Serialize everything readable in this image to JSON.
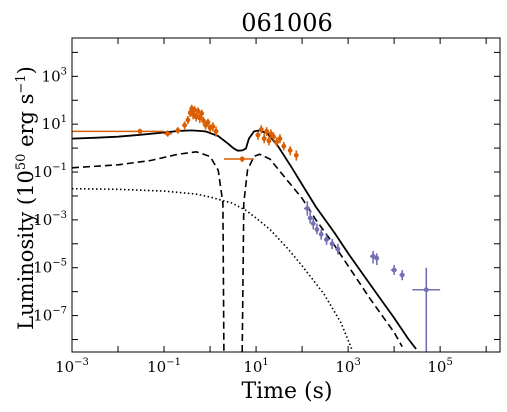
{
  "chart_data": {
    "type": "scatter",
    "title": "061006",
    "xlabel": "Time (s)",
    "ylabel_main": "Luminosity (10",
    "ylabel_exp": "50",
    "ylabel_tail": " erg s",
    "ylabel_tail_exp": "−1",
    "ylabel_close": ")",
    "x_scale": "log",
    "y_scale": "log",
    "xlim": [
      0.001,
      2000000
    ],
    "ylim": [
      3e-09,
      40000
    ],
    "x_ticks": [
      {
        "value": 0.001,
        "base": "10",
        "exp": "−3"
      },
      {
        "value": 0.1,
        "base": "10",
        "exp": "−1"
      },
      {
        "value": 10,
        "base": "10",
        "exp": "1"
      },
      {
        "value": 1000,
        "base": "10",
        "exp": "3"
      },
      {
        "value": 100000,
        "base": "10",
        "exp": "5"
      }
    ],
    "y_ticks": [
      {
        "value": 1e-07,
        "base": "10",
        "exp": "−7"
      },
      {
        "value": 1e-05,
        "base": "10",
        "exp": "−5"
      },
      {
        "value": 0.001,
        "base": "10",
        "exp": "−3"
      },
      {
        "value": 0.1,
        "base": "10",
        "exp": "−1"
      },
      {
        "value": 10,
        "base": "10",
        "exp": "1"
      },
      {
        "value": 1000,
        "base": "10",
        "exp": "3"
      }
    ],
    "grid": false,
    "legend": "none",
    "colors": {
      "bat": "#d95f02",
      "xrt": "#7570b3",
      "model": "#000000"
    },
    "series": [
      {
        "style": "solid",
        "points": [
          [
            0.001,
            2.5
          ],
          [
            0.003,
            2.7
          ],
          [
            0.01,
            3.0
          ],
          [
            0.03,
            3.6
          ],
          [
            0.1,
            4.5
          ],
          [
            0.2,
            5.2
          ],
          [
            0.4,
            5.5
          ],
          [
            0.8,
            5.0
          ],
          [
            1.5,
            3.2
          ],
          [
            2.5,
            1.5
          ],
          [
            3.2,
            1.0
          ],
          [
            4.0,
            0.78
          ],
          [
            5.0,
            0.8
          ],
          [
            6.0,
            0.95
          ],
          [
            7.0,
            2.5
          ],
          [
            9.0,
            5.0
          ],
          [
            12,
            5.5
          ],
          [
            18,
            4.0
          ],
          [
            30,
            1.2
          ],
          [
            60,
            0.15
          ],
          [
            100,
            0.03
          ],
          [
            200,
            0.0035
          ],
          [
            500,
            0.0003
          ],
          [
            1000,
            4e-05
          ],
          [
            3000,
            2e-06
          ],
          [
            10000,
            8e-08
          ],
          [
            20000,
            1.1e-08
          ],
          [
            30000,
            4e-09
          ]
        ]
      },
      {
        "style": "dashed",
        "points": [
          [
            0.001,
            0.15
          ],
          [
            0.01,
            0.2
          ],
          [
            0.05,
            0.3
          ],
          [
            0.2,
            0.55
          ],
          [
            0.5,
            0.7
          ],
          [
            1.0,
            0.45
          ],
          [
            1.5,
            0.12
          ],
          [
            1.9,
            0.005
          ],
          [
            2.0,
            3e-09
          ]
        ]
      },
      {
        "style": "dashed",
        "points": [
          [
            5.0,
            3e-09
          ],
          [
            5.4,
            0.005
          ],
          [
            6.5,
            0.12
          ],
          [
            9.0,
            0.45
          ],
          [
            12,
            0.55
          ],
          [
            20,
            0.35
          ],
          [
            50,
            0.04
          ],
          [
            100,
            0.008
          ],
          [
            200,
            0.001
          ],
          [
            500,
            9e-05
          ],
          [
            1000,
            1.2e-05
          ],
          [
            3000,
            5e-07
          ],
          [
            10000,
            2e-08
          ],
          [
            15000,
            5e-09
          ]
        ]
      },
      {
        "style": "dotted",
        "points": [
          [
            0.001,
            0.02
          ],
          [
            0.01,
            0.019
          ],
          [
            0.1,
            0.016
          ],
          [
            0.5,
            0.012
          ],
          [
            1,
            0.009
          ],
          [
            3,
            0.005
          ],
          [
            6,
            0.0025
          ],
          [
            10,
            0.0012
          ],
          [
            20,
            0.0004
          ],
          [
            50,
            6e-05
          ],
          [
            100,
            1.2e-05
          ],
          [
            300,
            8e-07
          ],
          [
            700,
            5e-08
          ],
          [
            1200,
            4e-09
          ]
        ]
      }
    ],
    "bat_points": [
      {
        "x": 0.03,
        "y": 5.0,
        "xerr": [
          0.001,
          0.1
        ],
        "yerr": [
          3.8,
          6.5
        ]
      },
      {
        "x": 0.12,
        "y": 4.0,
        "xerr": [
          0.1,
          0.15
        ],
        "yerr": [
          3.0,
          5.5
        ]
      },
      {
        "x": 0.2,
        "y": 5.5,
        "xerr": [
          0.18,
          0.23
        ],
        "yerr": [
          4.0,
          7.5
        ]
      },
      {
        "x": 0.28,
        "y": 9.0,
        "xerr": [
          0.26,
          0.3
        ],
        "yerr": [
          6.0,
          13
        ]
      },
      {
        "x": 0.33,
        "y": 15,
        "xerr": [
          0.32,
          0.35
        ],
        "yerr": [
          10,
          22
        ]
      },
      {
        "x": 0.37,
        "y": 30,
        "xerr": [
          0.36,
          0.38
        ],
        "yerr": [
          20,
          45
        ]
      },
      {
        "x": 0.4,
        "y": 45,
        "xerr": [
          0.39,
          0.41
        ],
        "yerr": [
          30,
          65
        ]
      },
      {
        "x": 0.43,
        "y": 25,
        "xerr": [
          0.42,
          0.44
        ],
        "yerr": [
          16,
          38
        ]
      },
      {
        "x": 0.46,
        "y": 40,
        "xerr": [
          0.45,
          0.47
        ],
        "yerr": [
          26,
          58
        ]
      },
      {
        "x": 0.5,
        "y": 20,
        "xerr": [
          0.49,
          0.51
        ],
        "yerr": [
          13,
          30
        ]
      },
      {
        "x": 0.55,
        "y": 35,
        "xerr": [
          0.54,
          0.56
        ],
        "yerr": [
          22,
          50
        ]
      },
      {
        "x": 0.6,
        "y": 18,
        "xerr": [
          0.59,
          0.61
        ],
        "yerr": [
          11,
          27
        ]
      },
      {
        "x": 0.66,
        "y": 28,
        "xerr": [
          0.65,
          0.67
        ],
        "yerr": [
          18,
          40
        ]
      },
      {
        "x": 0.72,
        "y": 14,
        "xerr": [
          0.7,
          0.74
        ],
        "yerr": [
          9,
          20
        ]
      },
      {
        "x": 0.8,
        "y": 9,
        "xerr": [
          0.77,
          0.83
        ],
        "yerr": [
          6,
          13
        ]
      },
      {
        "x": 0.9,
        "y": 12,
        "xerr": [
          0.86,
          0.94
        ],
        "yerr": [
          8,
          17
        ]
      },
      {
        "x": 1.0,
        "y": 7,
        "xerr": [
          0.95,
          1.05
        ],
        "yerr": [
          4.5,
          10
        ]
      },
      {
        "x": 1.15,
        "y": 8,
        "xerr": [
          1.08,
          1.22
        ],
        "yerr": [
          5,
          12
        ]
      },
      {
        "x": 1.35,
        "y": 5,
        "xerr": [
          1.25,
          1.45
        ],
        "yerr": [
          3,
          8
        ]
      },
      {
        "x": 5.0,
        "y": 0.35,
        "xerr": [
          2.0,
          9.0
        ],
        "yerr": [
          0.26,
          0.45
        ]
      },
      {
        "x": 11,
        "y": 3.5,
        "xerr": [
          10.5,
          11.5
        ],
        "yerr": [
          2.2,
          5
        ]
      },
      {
        "x": 13,
        "y": 6,
        "xerr": [
          12.5,
          13.5
        ],
        "yerr": [
          4,
          9
        ]
      },
      {
        "x": 15,
        "y": 2.5,
        "xerr": [
          14.5,
          15.5
        ],
        "yerr": [
          1.6,
          4
        ]
      },
      {
        "x": 17,
        "y": 5,
        "xerr": [
          16.5,
          17.5
        ],
        "yerr": [
          3.2,
          7.5
        ]
      },
      {
        "x": 19,
        "y": 2.0,
        "xerr": [
          18.5,
          19.5
        ],
        "yerr": [
          1.3,
          3
        ]
      },
      {
        "x": 21,
        "y": 4,
        "xerr": [
          20.5,
          21.5
        ],
        "yerr": [
          2.6,
          6
        ]
      },
      {
        "x": 24,
        "y": 3.0,
        "xerr": [
          23,
          25
        ],
        "yerr": [
          2,
          4.5
        ]
      },
      {
        "x": 28,
        "y": 1.8,
        "xerr": [
          27,
          29
        ],
        "yerr": [
          1.2,
          2.8
        ]
      },
      {
        "x": 33,
        "y": 2.5,
        "xerr": [
          31,
          35
        ],
        "yerr": [
          1.6,
          3.8
        ]
      },
      {
        "x": 40,
        "y": 1.2,
        "xerr": [
          38,
          42
        ],
        "yerr": [
          0.8,
          1.8
        ]
      },
      {
        "x": 55,
        "y": 0.8,
        "xerr": [
          50,
          60
        ],
        "yerr": [
          0.5,
          1.2
        ]
      },
      {
        "x": 75,
        "y": 0.5,
        "xerr": [
          68,
          82
        ],
        "yerr": [
          0.3,
          0.8
        ]
      }
    ],
    "xrt_points": [
      {
        "x": 130,
        "y": 0.003,
        "xerr": [
          110,
          150
        ],
        "yerr": [
          0.0015,
          0.006
        ]
      },
      {
        "x": 150,
        "y": 0.0012,
        "xerr": [
          140,
          160
        ],
        "yerr": [
          0.0007,
          0.0025
        ]
      },
      {
        "x": 175,
        "y": 0.0007,
        "xerr": [
          160,
          190
        ],
        "yerr": [
          0.0004,
          0.0012
        ]
      },
      {
        "x": 210,
        "y": 0.0004,
        "xerr": [
          190,
          230
        ],
        "yerr": [
          0.00025,
          0.0007
        ]
      },
      {
        "x": 260,
        "y": 0.00025,
        "xerr": [
          235,
          285
        ],
        "yerr": [
          0.00015,
          0.0004
        ]
      },
      {
        "x": 340,
        "y": 0.00015,
        "xerr": [
          300,
          380
        ],
        "yerr": [
          9e-05,
          0.00025
        ]
      },
      {
        "x": 450,
        "y": 0.0001,
        "xerr": [
          400,
          500
        ],
        "yerr": [
          6e-05,
          0.00016
        ]
      },
      {
        "x": 600,
        "y": 6e-05,
        "xerr": [
          530,
          670
        ],
        "yerr": [
          3.5e-05,
          0.0001
        ]
      },
      {
        "x": 3500,
        "y": 3e-05,
        "xerr": [
          3000,
          4000
        ],
        "yerr": [
          1.5e-05,
          5e-05
        ]
      },
      {
        "x": 4200,
        "y": 2.5e-05,
        "xerr": [
          4000,
          4400
        ],
        "yerr": [
          1.3e-05,
          4e-05
        ]
      },
      {
        "x": 10000,
        "y": 8e-06,
        "xerr": [
          8500,
          11500
        ],
        "yerr": [
          5e-06,
          1.3e-05
        ]
      },
      {
        "x": 15000,
        "y": 5e-06,
        "xerr": [
          13000,
          17000
        ],
        "yerr": [
          3e-06,
          8e-06
        ]
      },
      {
        "x": 50000,
        "y": 1.2e-06,
        "xerr": [
          25000,
          100000
        ],
        "yerr": [
          3e-09,
          1e-05
        ]
      }
    ]
  }
}
